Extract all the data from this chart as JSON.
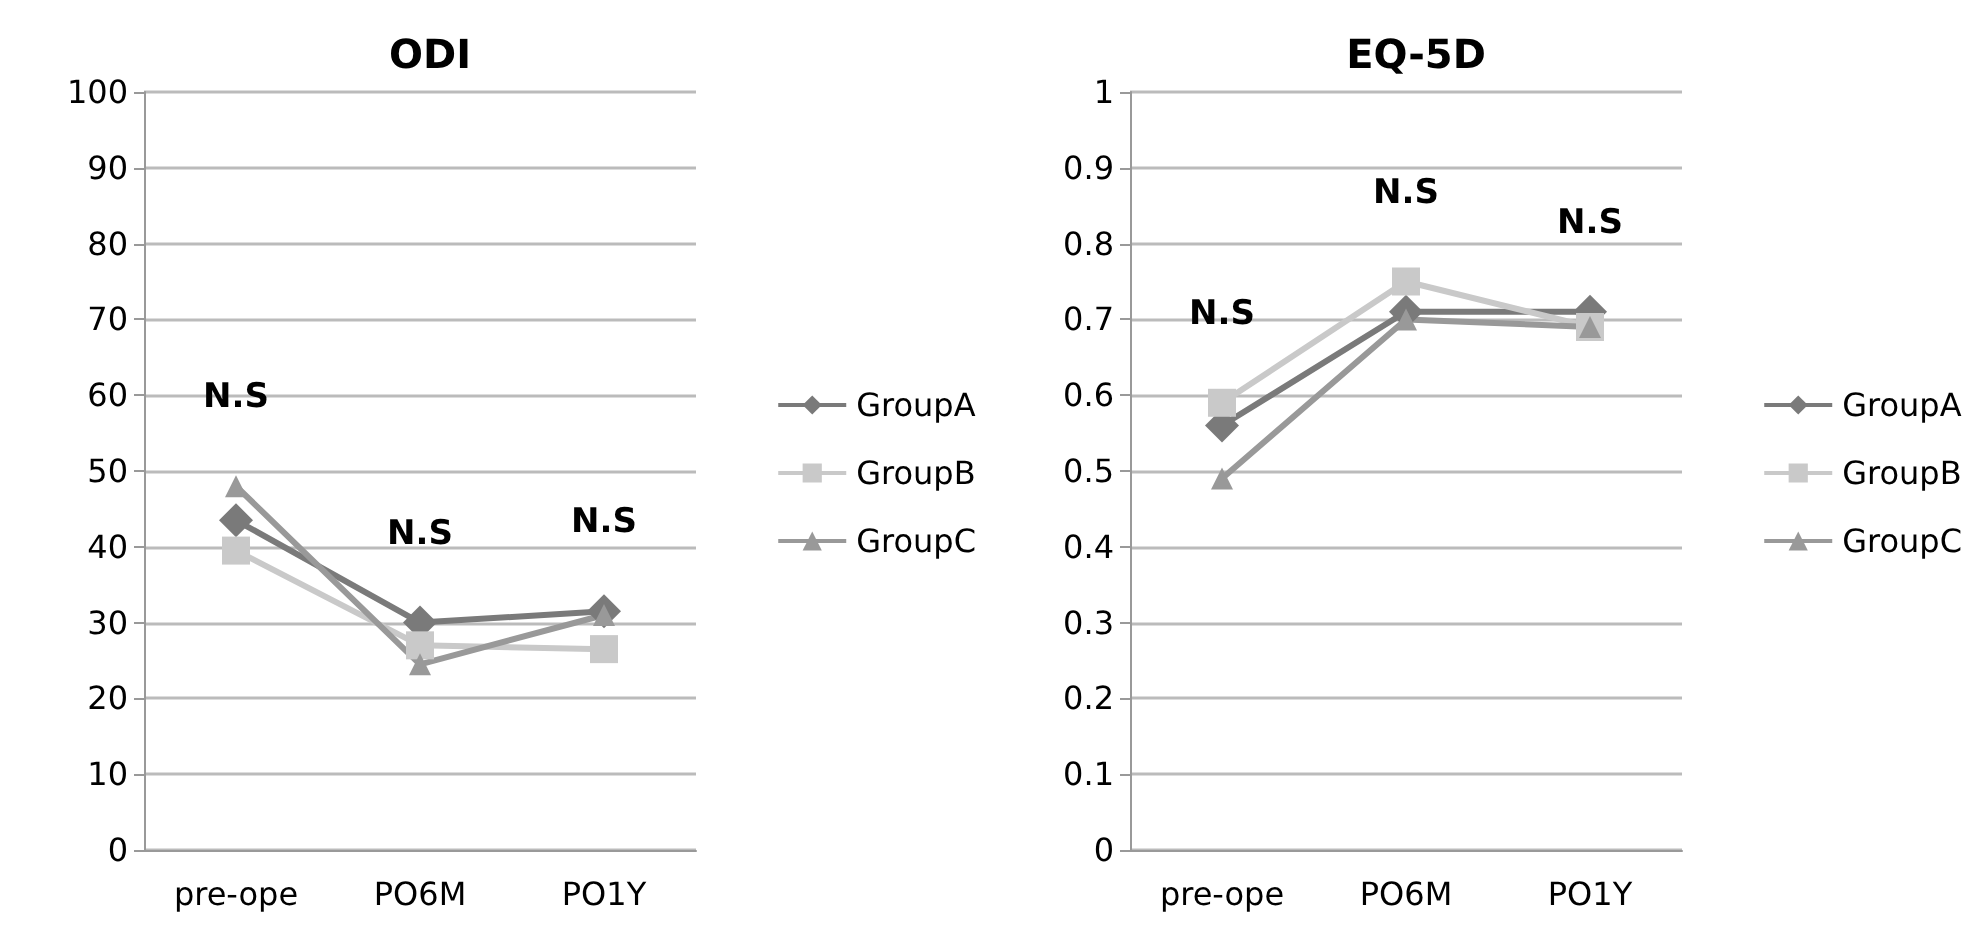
{
  "chart_data": [
    {
      "type": "line",
      "title": "ODI",
      "categories": [
        "pre-ope",
        "PO6M",
        "PO1Y"
      ],
      "ylim": [
        0,
        100
      ],
      "yticks": [
        0,
        10,
        20,
        30,
        40,
        50,
        60,
        70,
        80,
        90,
        100
      ],
      "grid": "y",
      "legend": "right",
      "series": [
        {
          "name": "GroupA",
          "color": "#7a7a7a",
          "marker": "diamond",
          "values": [
            43.5,
            30,
            31.5
          ]
        },
        {
          "name": "GroupB",
          "color": "#c9c9c9",
          "marker": "square",
          "values": [
            39.5,
            27,
            26.5
          ]
        },
        {
          "name": "GroupC",
          "color": "#999999",
          "marker": "triangle",
          "values": [
            48,
            24.5,
            31
          ]
        }
      ],
      "annotations": [
        "N.S",
        "N.S",
        "N.S"
      ]
    },
    {
      "type": "line",
      "title": "EQ-5D",
      "categories": [
        "pre-ope",
        "PO6M",
        "PO1Y"
      ],
      "ylim": [
        0,
        1
      ],
      "yticks": [
        0,
        0.1,
        0.2,
        0.3,
        0.4,
        0.5,
        0.6,
        0.7,
        0.8,
        0.9,
        1
      ],
      "grid": "y",
      "legend": "right",
      "series": [
        {
          "name": "GroupA",
          "color": "#7a7a7a",
          "marker": "diamond",
          "values": [
            0.56,
            0.71,
            0.71
          ]
        },
        {
          "name": "GroupB",
          "color": "#c9c9c9",
          "marker": "square",
          "values": [
            0.59,
            0.75,
            0.69
          ]
        },
        {
          "name": "GroupC",
          "color": "#999999",
          "marker": "triangle",
          "values": [
            0.49,
            0.7,
            0.69
          ]
        }
      ],
      "annotations": [
        "N.S",
        "N.S",
        "N.S"
      ]
    }
  ]
}
